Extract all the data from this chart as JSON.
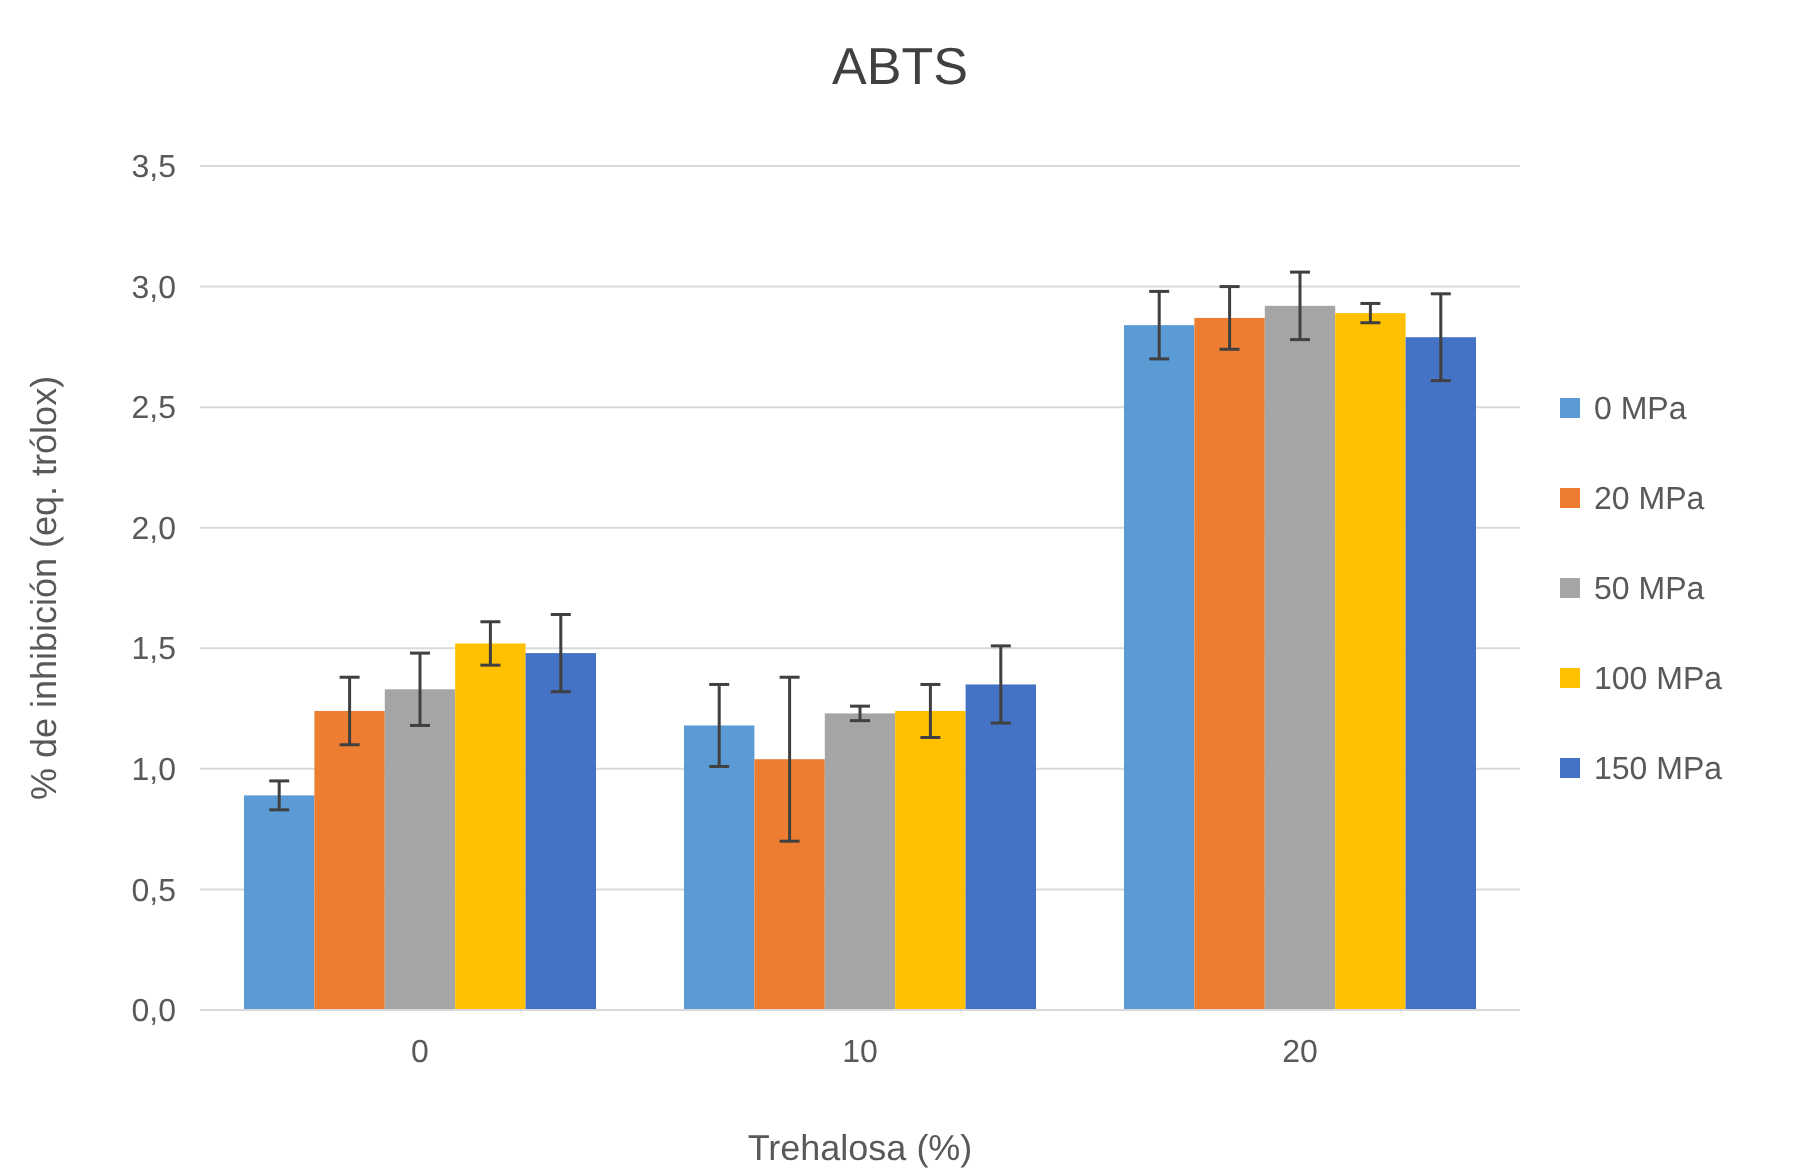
{
  "chart_data": {
    "type": "bar",
    "title": "ABTS",
    "xlabel": "Trehalosa (%)",
    "ylabel": "% de inhibición (eq. trólox)",
    "categories": [
      "0",
      "10",
      "20"
    ],
    "series": [
      {
        "name": "0 MPa",
        "color": "#5b9bd5",
        "values": [
          0.89,
          1.18,
          2.84
        ],
        "errors": [
          0.06,
          0.17,
          0.14
        ]
      },
      {
        "name": "20 MPa",
        "color": "#ed7d31",
        "values": [
          1.24,
          1.04,
          2.87
        ],
        "errors": [
          0.14,
          0.34,
          0.13
        ]
      },
      {
        "name": "50 MPa",
        "color": "#a5a5a5",
        "values": [
          1.33,
          1.23,
          2.92
        ],
        "errors": [
          0.15,
          0.03,
          0.14
        ]
      },
      {
        "name": "100 MPa",
        "color": "#ffc000",
        "values": [
          1.52,
          1.24,
          2.89
        ],
        "errors": [
          0.09,
          0.11,
          0.04
        ]
      },
      {
        "name": "150 MPa",
        "color": "#4472c4",
        "values": [
          1.48,
          1.35,
          2.79
        ],
        "errors": [
          0.16,
          0.16,
          0.18
        ]
      }
    ],
    "ylim": [
      0,
      3.5
    ],
    "yticks": [
      {
        "value": 0,
        "label": "0,0"
      },
      {
        "value": 0.5,
        "label": "0,5"
      },
      {
        "value": 1,
        "label": "1,0"
      },
      {
        "value": 1.5,
        "label": "1,5"
      },
      {
        "value": 2,
        "label": "2,0"
      },
      {
        "value": 2.5,
        "label": "2,5"
      },
      {
        "value": 3,
        "label": "3,0"
      },
      {
        "value": 3.5,
        "label": "3,5"
      }
    ],
    "grid": "y",
    "legend": "right"
  }
}
